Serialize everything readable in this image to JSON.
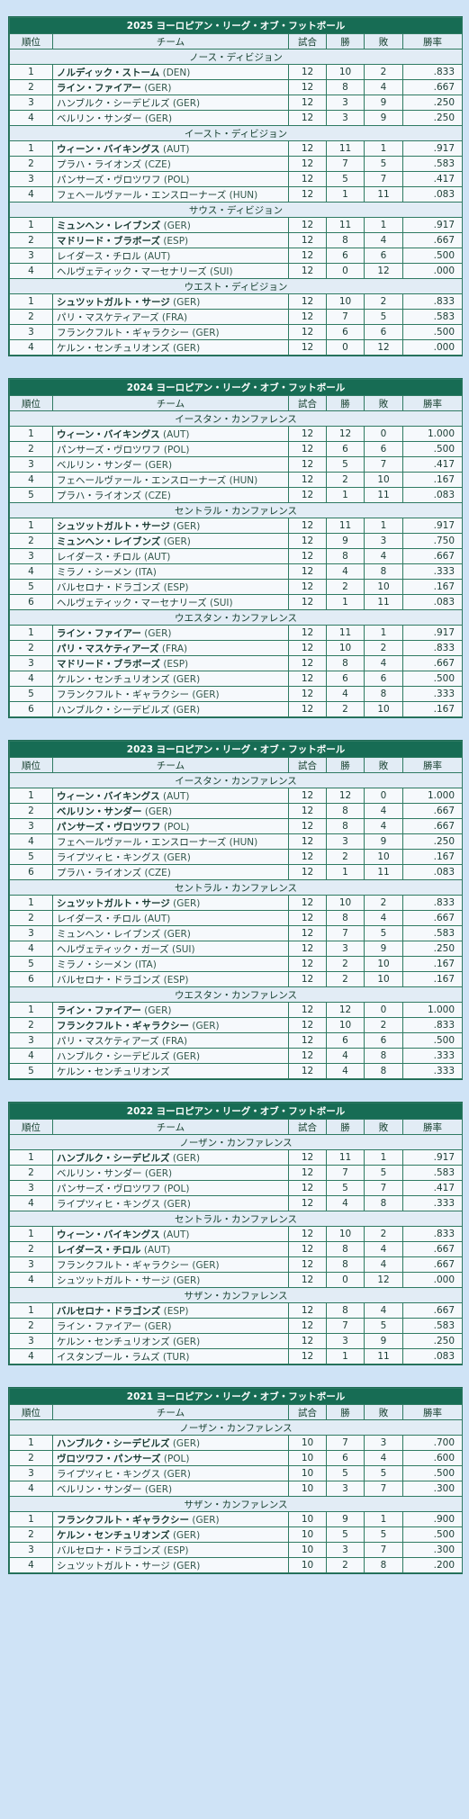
{
  "headers": [
    "順位",
    "チーム",
    "試合",
    "勝",
    "敗",
    "勝率"
  ],
  "seasons": [
    {
      "title": "2025 ヨーロピアン・リーグ・オブ・フットボール",
      "divisions": [
        {
          "name": "ノース・ディビジョン",
          "teams": [
            {
              "rank": "1",
              "name": "ノルディック・ストーム",
              "cc": "(DEN)",
              "bold": true,
              "g": "12",
              "w": "10",
              "l": "2",
              "pct": ".833"
            },
            {
              "rank": "2",
              "name": "ライン・ファイアー",
              "cc": "(GER)",
              "bold": true,
              "g": "12",
              "w": "8",
              "l": "4",
              "pct": ".667"
            },
            {
              "rank": "3",
              "name": "ハンブルク・シーデビルズ",
              "cc": "(GER)",
              "bold": false,
              "g": "12",
              "w": "3",
              "l": "9",
              "pct": ".250"
            },
            {
              "rank": "4",
              "name": "ベルリン・サンダー",
              "cc": "(GER)",
              "bold": false,
              "g": "12",
              "w": "3",
              "l": "9",
              "pct": ".250"
            }
          ]
        },
        {
          "name": "イースト・ディビジョン",
          "teams": [
            {
              "rank": "1",
              "name": "ウィーン・バイキングス",
              "cc": "(AUT)",
              "bold": true,
              "g": "12",
              "w": "11",
              "l": "1",
              "pct": ".917"
            },
            {
              "rank": "2",
              "name": "プラハ・ライオンズ",
              "cc": "(CZE)",
              "bold": false,
              "g": "12",
              "w": "7",
              "l": "5",
              "pct": ".583"
            },
            {
              "rank": "3",
              "name": "パンサーズ・ヴロツワフ",
              "cc": "(POL)",
              "bold": false,
              "g": "12",
              "w": "5",
              "l": "7",
              "pct": ".417"
            },
            {
              "rank": "4",
              "name": "フェヘールヴァール・エンスローナーズ",
              "cc": "(HUN)",
              "bold": false,
              "g": "12",
              "w": "1",
              "l": "11",
              "pct": ".083"
            }
          ]
        },
        {
          "name": "サウス・ディビジョン",
          "teams": [
            {
              "rank": "1",
              "name": "ミュンヘン・レイブンズ",
              "cc": "(GER)",
              "bold": true,
              "g": "12",
              "w": "11",
              "l": "1",
              "pct": ".917"
            },
            {
              "rank": "2",
              "name": "マドリード・ブラボーズ",
              "cc": "(ESP)",
              "bold": true,
              "g": "12",
              "w": "8",
              "l": "4",
              "pct": ".667"
            },
            {
              "rank": "3",
              "name": "レイダース・チロル",
              "cc": "(AUT)",
              "bold": false,
              "g": "12",
              "w": "6",
              "l": "6",
              "pct": ".500"
            },
            {
              "rank": "4",
              "name": "ヘルヴェティック・マーセナリーズ",
              "cc": "(SUI)",
              "bold": false,
              "g": "12",
              "w": "0",
              "l": "12",
              "pct": ".000"
            }
          ]
        },
        {
          "name": "ウエスト・ディビジョン",
          "teams": [
            {
              "rank": "1",
              "name": "シュツットガルト・サージ",
              "cc": "(GER)",
              "bold": true,
              "g": "12",
              "w": "10",
              "l": "2",
              "pct": ".833"
            },
            {
              "rank": "2",
              "name": "パリ・マスケティアーズ",
              "cc": "(FRA)",
              "bold": false,
              "g": "12",
              "w": "7",
              "l": "5",
              "pct": ".583"
            },
            {
              "rank": "3",
              "name": "フランクフルト・ギャラクシー",
              "cc": "(GER)",
              "bold": false,
              "g": "12",
              "w": "6",
              "l": "6",
              "pct": ".500"
            },
            {
              "rank": "4",
              "name": "ケルン・センチュリオンズ",
              "cc": "(GER)",
              "bold": false,
              "g": "12",
              "w": "0",
              "l": "12",
              "pct": ".000"
            }
          ]
        }
      ]
    },
    {
      "title": "2024 ヨーロピアン・リーグ・オブ・フットボール",
      "divisions": [
        {
          "name": "イースタン・カンファレンス",
          "teams": [
            {
              "rank": "1",
              "name": "ウィーン・バイキングス",
              "cc": "(AUT)",
              "bold": true,
              "g": "12",
              "w": "12",
              "l": "0",
              "pct": "1.000"
            },
            {
              "rank": "2",
              "name": "パンサーズ・ヴロツワフ",
              "cc": "(POL)",
              "bold": false,
              "g": "12",
              "w": "6",
              "l": "6",
              "pct": ".500"
            },
            {
              "rank": "3",
              "name": "ベルリン・サンダー",
              "cc": "(GER)",
              "bold": false,
              "g": "12",
              "w": "5",
              "l": "7",
              "pct": ".417"
            },
            {
              "rank": "4",
              "name": "フェヘールヴァール・エンスローナーズ",
              "cc": "(HUN)",
              "bold": false,
              "g": "12",
              "w": "2",
              "l": "10",
              "pct": ".167"
            },
            {
              "rank": "5",
              "name": "プラハ・ライオンズ",
              "cc": "(CZE)",
              "bold": false,
              "g": "12",
              "w": "1",
              "l": "11",
              "pct": ".083"
            }
          ]
        },
        {
          "name": "セントラル・カンファレンス",
          "teams": [
            {
              "rank": "1",
              "name": "シュツットガルト・サージ",
              "cc": "(GER)",
              "bold": true,
              "g": "12",
              "w": "11",
              "l": "1",
              "pct": ".917"
            },
            {
              "rank": "2",
              "name": "ミュンヘン・レイブンズ",
              "cc": "(GER)",
              "bold": true,
              "g": "12",
              "w": "9",
              "l": "3",
              "pct": ".750"
            },
            {
              "rank": "3",
              "name": "レイダース・チロル",
              "cc": "(AUT)",
              "bold": false,
              "g": "12",
              "w": "8",
              "l": "4",
              "pct": ".667"
            },
            {
              "rank": "4",
              "name": "ミラノ・シーメン",
              "cc": "(ITA)",
              "bold": false,
              "g": "12",
              "w": "4",
              "l": "8",
              "pct": ".333"
            },
            {
              "rank": "5",
              "name": "バルセロナ・ドラゴンズ",
              "cc": "(ESP)",
              "bold": false,
              "g": "12",
              "w": "2",
              "l": "10",
              "pct": ".167"
            },
            {
              "rank": "6",
              "name": "ヘルヴェティック・マーセナリーズ",
              "cc": "(SUI)",
              "bold": false,
              "g": "12",
              "w": "1",
              "l": "11",
              "pct": ".083"
            }
          ]
        },
        {
          "name": "ウエスタン・カンファレンス",
          "teams": [
            {
              "rank": "1",
              "name": "ライン・ファイアー",
              "cc": "(GER)",
              "bold": true,
              "g": "12",
              "w": "11",
              "l": "1",
              "pct": ".917"
            },
            {
              "rank": "2",
              "name": "パリ・マスケティアーズ",
              "cc": "(FRA)",
              "bold": true,
              "g": "12",
              "w": "10",
              "l": "2",
              "pct": ".833"
            },
            {
              "rank": "3",
              "name": "マドリード・ブラボーズ",
              "cc": "(ESP)",
              "bold": true,
              "g": "12",
              "w": "8",
              "l": "4",
              "pct": ".667"
            },
            {
              "rank": "4",
              "name": "ケルン・センチュリオンズ",
              "cc": "(GER)",
              "bold": false,
              "g": "12",
              "w": "6",
              "l": "6",
              "pct": ".500"
            },
            {
              "rank": "5",
              "name": "フランクフルト・ギャラクシー",
              "cc": "(GER)",
              "bold": false,
              "g": "12",
              "w": "4",
              "l": "8",
              "pct": ".333"
            },
            {
              "rank": "6",
              "name": "ハンブルク・シーデビルズ",
              "cc": "(GER)",
              "bold": false,
              "g": "12",
              "w": "2",
              "l": "10",
              "pct": ".167"
            }
          ]
        }
      ]
    },
    {
      "title": "2023 ヨーロピアン・リーグ・オブ・フットボール",
      "divisions": [
        {
          "name": "イースタン・カンファレンス",
          "teams": [
            {
              "rank": "1",
              "name": "ウィーン・バイキングス",
              "cc": "(AUT)",
              "bold": true,
              "g": "12",
              "w": "12",
              "l": "0",
              "pct": "1.000"
            },
            {
              "rank": "2",
              "name": "ベルリン・サンダー",
              "cc": "(GER)",
              "bold": true,
              "g": "12",
              "w": "8",
              "l": "4",
              "pct": ".667"
            },
            {
              "rank": "3",
              "name": "パンサーズ・ヴロツワフ",
              "cc": "(POL)",
              "bold": true,
              "g": "12",
              "w": "8",
              "l": "4",
              "pct": ".667"
            },
            {
              "rank": "4",
              "name": "フェヘールヴァール・エンスローナーズ",
              "cc": "(HUN)",
              "bold": false,
              "g": "12",
              "w": "3",
              "l": "9",
              "pct": ".250"
            },
            {
              "rank": "5",
              "name": "ライプツィヒ・キングス",
              "cc": "(GER)",
              "bold": false,
              "g": "12",
              "w": "2",
              "l": "10",
              "pct": ".167"
            },
            {
              "rank": "6",
              "name": "プラハ・ライオンズ",
              "cc": "(CZE)",
              "bold": false,
              "g": "12",
              "w": "1",
              "l": "11",
              "pct": ".083"
            }
          ]
        },
        {
          "name": "セントラル・カンファレンス",
          "teams": [
            {
              "rank": "1",
              "name": "シュツットガルト・サージ",
              "cc": "(GER)",
              "bold": true,
              "g": "12",
              "w": "10",
              "l": "2",
              "pct": ".833"
            },
            {
              "rank": "2",
              "name": "レイダース・チロル",
              "cc": "(AUT)",
              "bold": false,
              "g": "12",
              "w": "8",
              "l": "4",
              "pct": ".667"
            },
            {
              "rank": "3",
              "name": "ミュンヘン・レイブンズ",
              "cc": "(GER)",
              "bold": false,
              "g": "12",
              "w": "7",
              "l": "5",
              "pct": ".583"
            },
            {
              "rank": "4",
              "name": "ヘルヴェティック・ガーズ",
              "cc": "(SUI)",
              "bold": false,
              "g": "12",
              "w": "3",
              "l": "9",
              "pct": ".250"
            },
            {
              "rank": "5",
              "name": "ミラノ・シーメン",
              "cc": "(ITA)",
              "bold": false,
              "g": "12",
              "w": "2",
              "l": "10",
              "pct": ".167"
            },
            {
              "rank": "6",
              "name": "バルセロナ・ドラゴンズ",
              "cc": "(ESP)",
              "bold": false,
              "g": "12",
              "w": "2",
              "l": "10",
              "pct": ".167"
            }
          ]
        },
        {
          "name": "ウエスタン・カンファレンス",
          "teams": [
            {
              "rank": "1",
              "name": "ライン・ファイアー",
              "cc": "(GER)",
              "bold": true,
              "g": "12",
              "w": "12",
              "l": "0",
              "pct": "1.000"
            },
            {
              "rank": "2",
              "name": "フランクフルト・ギャラクシー",
              "cc": "(GER)",
              "bold": true,
              "g": "12",
              "w": "10",
              "l": "2",
              "pct": ".833"
            },
            {
              "rank": "3",
              "name": "パリ・マスケティアーズ",
              "cc": "(FRA)",
              "bold": false,
              "g": "12",
              "w": "6",
              "l": "6",
              "pct": ".500"
            },
            {
              "rank": "4",
              "name": "ハンブルク・シーデビルズ",
              "cc": "(GER)",
              "bold": false,
              "g": "12",
              "w": "4",
              "l": "8",
              "pct": ".333"
            },
            {
              "rank": "5",
              "name": "ケルン・センチュリオンズ",
              "cc": "",
              "bold": false,
              "g": "12",
              "w": "4",
              "l": "8",
              "pct": ".333"
            }
          ]
        }
      ]
    },
    {
      "title": "2022 ヨーロピアン・リーグ・オブ・フットボール",
      "divisions": [
        {
          "name": "ノーザン・カンファレンス",
          "teams": [
            {
              "rank": "1",
              "name": "ハンブルク・シーデビルズ",
              "cc": "(GER)",
              "bold": true,
              "g": "12",
              "w": "11",
              "l": "1",
              "pct": ".917"
            },
            {
              "rank": "2",
              "name": "ベルリン・サンダー",
              "cc": "(GER)",
              "bold": false,
              "g": "12",
              "w": "7",
              "l": "5",
              "pct": ".583"
            },
            {
              "rank": "3",
              "name": "パンサーズ・ヴロツワフ",
              "cc": "(POL)",
              "bold": false,
              "g": "12",
              "w": "5",
              "l": "7",
              "pct": ".417"
            },
            {
              "rank": "4",
              "name": "ライプツィヒ・キングス",
              "cc": "(GER)",
              "bold": false,
              "g": "12",
              "w": "4",
              "l": "8",
              "pct": ".333"
            }
          ]
        },
        {
          "name": "セントラル・カンファレンス",
          "teams": [
            {
              "rank": "1",
              "name": "ウィーン・バイキングス",
              "cc": "(AUT)",
              "bold": true,
              "g": "12",
              "w": "10",
              "l": "2",
              "pct": ".833"
            },
            {
              "rank": "2",
              "name": "レイダース・チロル",
              "cc": "(AUT)",
              "bold": true,
              "g": "12",
              "w": "8",
              "l": "4",
              "pct": ".667"
            },
            {
              "rank": "3",
              "name": "フランクフルト・ギャラクシー",
              "cc": "(GER)",
              "bold": false,
              "g": "12",
              "w": "8",
              "l": "4",
              "pct": ".667"
            },
            {
              "rank": "4",
              "name": "シュツットガルト・サージ",
              "cc": "(GER)",
              "bold": false,
              "g": "12",
              "w": "0",
              "l": "12",
              "pct": ".000"
            }
          ]
        },
        {
          "name": "サザン・カンファレンス",
          "teams": [
            {
              "rank": "1",
              "name": "バルセロナ・ドラゴンズ",
              "cc": "(ESP)",
              "bold": true,
              "g": "12",
              "w": "8",
              "l": "4",
              "pct": ".667"
            },
            {
              "rank": "2",
              "name": "ライン・ファイアー",
              "cc": "(GER)",
              "bold": false,
              "g": "12",
              "w": "7",
              "l": "5",
              "pct": ".583"
            },
            {
              "rank": "3",
              "name": "ケルン・センチュリオンズ",
              "cc": "(GER)",
              "bold": false,
              "g": "12",
              "w": "3",
              "l": "9",
              "pct": ".250"
            },
            {
              "rank": "4",
              "name": "イスタンブール・ラムズ",
              "cc": "(TUR)",
              "bold": false,
              "g": "12",
              "w": "1",
              "l": "11",
              "pct": ".083"
            }
          ]
        }
      ]
    },
    {
      "title": "2021 ヨーロピアン・リーグ・オブ・フットボール",
      "divisions": [
        {
          "name": "ノーザン・カンファレンス",
          "teams": [
            {
              "rank": "1",
              "name": "ハンブルク・シーデビルズ",
              "cc": "(GER)",
              "bold": true,
              "g": "10",
              "w": "7",
              "l": "3",
              "pct": ".700"
            },
            {
              "rank": "2",
              "name": "ヴロツワフ・パンサーズ",
              "cc": "(POL)",
              "bold": true,
              "g": "10",
              "w": "6",
              "l": "4",
              "pct": ".600"
            },
            {
              "rank": "3",
              "name": "ライプツィヒ・キングス",
              "cc": "(GER)",
              "bold": false,
              "g": "10",
              "w": "5",
              "l": "5",
              "pct": ".500"
            },
            {
              "rank": "4",
              "name": "ベルリン・サンダー",
              "cc": "(GER)",
              "bold": false,
              "g": "10",
              "w": "3",
              "l": "7",
              "pct": ".300"
            }
          ]
        },
        {
          "name": "サザン・カンファレンス",
          "teams": [
            {
              "rank": "1",
              "name": "フランクフルト・ギャラクシー",
              "cc": "(GER)",
              "bold": true,
              "g": "10",
              "w": "9",
              "l": "1",
              "pct": ".900"
            },
            {
              "rank": "2",
              "name": "ケルン・センチュリオンズ",
              "cc": "(GER)",
              "bold": true,
              "g": "10",
              "w": "5",
              "l": "5",
              "pct": ".500"
            },
            {
              "rank": "3",
              "name": "バルセロナ・ドラゴンズ",
              "cc": "(ESP)",
              "bold": false,
              "g": "10",
              "w": "3",
              "l": "7",
              "pct": ".300"
            },
            {
              "rank": "4",
              "name": "シュツットガルト・サージ",
              "cc": "(GER)",
              "bold": false,
              "g": "10",
              "w": "2",
              "l": "8",
              "pct": ".200"
            }
          ]
        }
      ]
    }
  ]
}
